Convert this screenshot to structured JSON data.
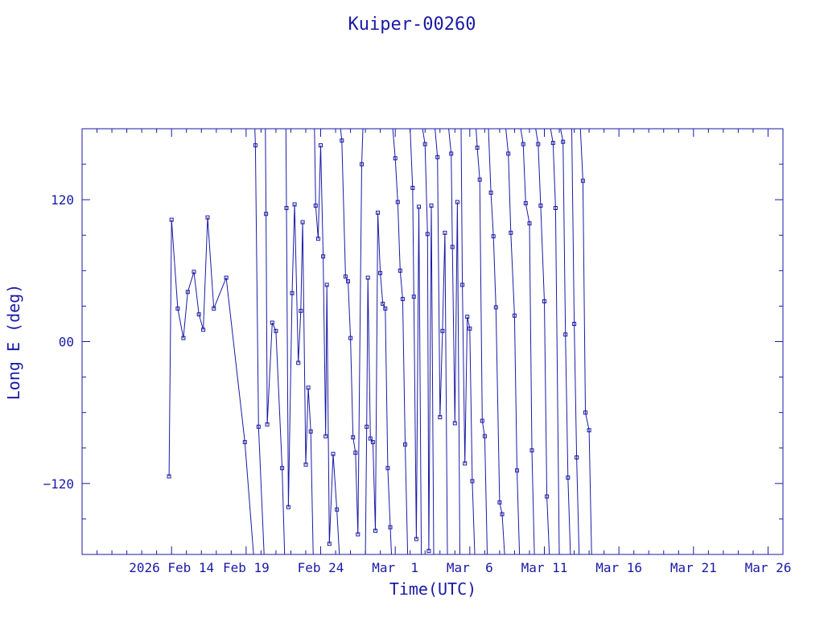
{
  "chart_data": {
    "type": "line",
    "title": "Kuiper-00260",
    "xlabel": "Time(UTC)",
    "ylabel": "Long E (deg)",
    "ylim": [
      -180,
      180
    ],
    "y_ticks": [
      -120,
      0,
      120
    ],
    "y_tick_labels": [
      "−120",
      "00",
      "120"
    ],
    "x_range": [
      "2026-02-08",
      "2026-03-27"
    ],
    "x_ticks": [
      "2026-02-14",
      "2026-02-19",
      "2026-02-24",
      "2026-03-01",
      "2026-03-06",
      "2026-03-11",
      "2026-03-16",
      "2026-03-21",
      "2026-03-26"
    ],
    "x_tick_labels": [
      "2026 Feb 14",
      "Feb 19",
      "Feb 24",
      "Mar  1",
      "Mar  6",
      "Mar 11",
      "Mar 16",
      "Mar 21",
      "Mar 26"
    ],
    "color": "#1a1aa6",
    "marker": "square",
    "grid": false,
    "series": [
      {
        "points": [
          [
            "2026-02-13T20:00",
            -114
          ],
          [
            "2026-02-14T00:00",
            103
          ],
          [
            "2026-02-14T10:00",
            28
          ],
          [
            "2026-02-14T19:00",
            3
          ],
          [
            "2026-02-15T02:00",
            42
          ],
          [
            "2026-02-15T12:00",
            59
          ],
          [
            "2026-02-15T20:00",
            23
          ],
          [
            "2026-02-16T03:00",
            10
          ],
          [
            "2026-02-16T10:00",
            105
          ],
          [
            "2026-02-16T20:00",
            28
          ],
          [
            "2026-02-17T16:00",
            54
          ],
          [
            "2026-02-18T22:00",
            -85
          ],
          [
            "2026-02-19T12:00",
            -180
          ],
          null,
          [
            "2026-02-19T14:00",
            180
          ],
          [
            "2026-02-19T15:00",
            166
          ],
          [
            "2026-02-19T20:00",
            -72
          ],
          [
            "2026-02-20T05:00",
            -180
          ],
          null,
          [
            "2026-02-20T07:00",
            180
          ],
          [
            "2026-02-20T08:00",
            108
          ],
          [
            "2026-02-20T10:00",
            -70
          ],
          [
            "2026-02-20T18:00",
            16
          ],
          [
            "2026-02-21T00:00",
            9
          ],
          [
            "2026-02-21T10:00",
            -107
          ],
          [
            "2026-02-21T14:00",
            -180
          ],
          null,
          [
            "2026-02-21T16:00",
            180
          ],
          [
            "2026-02-21T17:00",
            113
          ],
          [
            "2026-02-21T20:00",
            -140
          ],
          [
            "2026-02-22T02:00",
            41
          ],
          [
            "2026-02-22T06:00",
            116
          ],
          [
            "2026-02-22T12:00",
            -18
          ],
          [
            "2026-02-22T16:00",
            26
          ],
          [
            "2026-02-22T19:00",
            101
          ],
          [
            "2026-02-23T00:00",
            -104
          ],
          [
            "2026-02-23T04:00",
            -39
          ],
          [
            "2026-02-23T08:00",
            -76
          ],
          [
            "2026-02-23T12:00",
            -180
          ],
          null,
          [
            "2026-02-23T14:00",
            180
          ],
          [
            "2026-02-23T16:00",
            115
          ],
          [
            "2026-02-23T20:00",
            87
          ],
          [
            "2026-02-24T00:00",
            166
          ],
          [
            "2026-02-24T04:00",
            72
          ],
          [
            "2026-02-24T08:00",
            -80
          ],
          [
            "2026-02-24T10:00",
            48
          ],
          [
            "2026-02-24T14:00",
            -171
          ],
          [
            "2026-02-24T20:00",
            -95
          ],
          [
            "2026-02-25T02:00",
            -142
          ],
          [
            "2026-02-25T06:00",
            -180
          ],
          null,
          [
            "2026-02-25T08:00",
            180
          ],
          [
            "2026-02-25T10:00",
            170
          ],
          [
            "2026-02-25T16:00",
            55
          ],
          [
            "2026-02-25T20:00",
            51
          ],
          [
            "2026-02-26T00:00",
            3
          ],
          [
            "2026-02-26T04:00",
            -81
          ],
          [
            "2026-02-26T08:00",
            -94
          ],
          [
            "2026-02-26T12:00",
            -163
          ],
          [
            "2026-02-26T18:00",
            150
          ],
          [
            "2026-02-26T20:00",
            180
          ],
          null,
          [
            "2026-02-27T00:00",
            -180
          ],
          [
            "2026-02-27T02:00",
            -72
          ],
          [
            "2026-02-27T04:00",
            54
          ],
          [
            "2026-02-27T08:00",
            -82
          ],
          [
            "2026-02-27T12:00",
            -85
          ],
          [
            "2026-02-27T16:00",
            -160
          ],
          [
            "2026-02-27T20:00",
            109
          ],
          [
            "2026-02-28T00:00",
            58
          ],
          [
            "2026-02-28T04:00",
            32
          ],
          [
            "2026-02-28T08:00",
            28
          ],
          [
            "2026-02-28T12:00",
            -107
          ],
          [
            "2026-02-28T16:00",
            -157
          ],
          [
            "2026-02-28T18:00",
            -180
          ],
          null,
          [
            "2026-02-28T20:00",
            180
          ],
          [
            "2026-03-01T00:00",
            155
          ],
          [
            "2026-03-01T04:00",
            118
          ],
          [
            "2026-03-01T08:00",
            60
          ],
          [
            "2026-03-01T12:00",
            36
          ],
          [
            "2026-03-01T16:00",
            -87
          ],
          [
            "2026-03-01T20:00",
            -180
          ],
          null,
          [
            "2026-03-02T00:00",
            180
          ],
          [
            "2026-03-02T04:00",
            130
          ],
          [
            "2026-03-02T06:00",
            38
          ],
          [
            "2026-03-02T10:00",
            -167
          ],
          [
            "2026-03-02T14:00",
            114
          ],
          [
            "2026-03-02T18:00",
            -180
          ],
          null,
          [
            "2026-03-02T20:00",
            180
          ],
          [
            "2026-03-03T00:00",
            167
          ],
          [
            "2026-03-03T04:00",
            91
          ],
          [
            "2026-03-03T06:00",
            -177
          ],
          [
            "2026-03-03T10:00",
            115
          ],
          [
            "2026-03-03T14:00",
            -180
          ],
          null,
          [
            "2026-03-03T16:00",
            180
          ],
          [
            "2026-03-03T20:00",
            156
          ],
          [
            "2026-03-04T00:00",
            -64
          ],
          [
            "2026-03-04T04:00",
            9
          ],
          [
            "2026-03-04T08:00",
            92
          ],
          [
            "2026-03-04T12:00",
            -180
          ],
          null,
          [
            "2026-03-04T14:00",
            180
          ],
          [
            "2026-03-04T18:00",
            159
          ],
          [
            "2026-03-04T20:00",
            80
          ],
          [
            "2026-03-05T00:00",
            -69
          ],
          [
            "2026-03-05T04:00",
            118
          ],
          [
            "2026-03-05T08:00",
            -180
          ],
          null,
          [
            "2026-03-05T10:00",
            180
          ],
          [
            "2026-03-05T12:00",
            48
          ],
          [
            "2026-03-05T16:00",
            -103
          ],
          [
            "2026-03-05T20:00",
            21
          ],
          [
            "2026-03-06T00:00",
            11
          ],
          [
            "2026-03-06T04:00",
            -118
          ],
          [
            "2026-03-06T08:00",
            -180
          ],
          null,
          [
            "2026-03-06T10:00",
            180
          ],
          [
            "2026-03-06T12:00",
            164
          ],
          [
            "2026-03-06T16:00",
            137
          ],
          [
            "2026-03-06T20:00",
            -67
          ],
          [
            "2026-03-07T00:00",
            -80
          ],
          [
            "2026-03-07T04:00",
            -180
          ],
          null,
          [
            "2026-03-07T06:00",
            180
          ],
          [
            "2026-03-07T10:00",
            126
          ],
          [
            "2026-03-07T14:00",
            89
          ],
          [
            "2026-03-07T18:00",
            29
          ],
          [
            "2026-03-08T00:00",
            -136
          ],
          [
            "2026-03-08T04:00",
            -146
          ],
          [
            "2026-03-08T08:00",
            -180
          ],
          null,
          [
            "2026-03-08T10:00",
            180
          ],
          [
            "2026-03-08T14:00",
            159
          ],
          [
            "2026-03-08T18:00",
            92
          ],
          [
            "2026-03-09T00:00",
            22
          ],
          [
            "2026-03-09T04:00",
            -109
          ],
          [
            "2026-03-09T08:00",
            -180
          ],
          null,
          [
            "2026-03-09T10:00",
            180
          ],
          [
            "2026-03-09T14:00",
            167
          ],
          [
            "2026-03-09T18:00",
            117
          ],
          [
            "2026-03-10T00:00",
            100
          ],
          [
            "2026-03-10T04:00",
            -92
          ],
          [
            "2026-03-10T08:00",
            -180
          ],
          null,
          [
            "2026-03-10T10:00",
            180
          ],
          [
            "2026-03-10T14:00",
            167
          ],
          [
            "2026-03-10T18:00",
            115
          ],
          [
            "2026-03-11T00:00",
            34
          ],
          [
            "2026-03-11T04:00",
            -131
          ],
          [
            "2026-03-11T08:00",
            -180
          ],
          null,
          [
            "2026-03-11T10:00",
            180
          ],
          [
            "2026-03-11T14:00",
            168
          ],
          [
            "2026-03-11T18:00",
            113
          ],
          [
            "2026-03-12T00:00",
            -180
          ],
          null,
          [
            "2026-03-12T02:00",
            180
          ],
          [
            "2026-03-12T06:00",
            169
          ],
          [
            "2026-03-12T10:00",
            6
          ],
          [
            "2026-03-12T14:00",
            -115
          ],
          [
            "2026-03-12T18:00",
            -180
          ],
          null,
          [
            "2026-03-12T20:00",
            180
          ],
          [
            "2026-03-13T00:00",
            15
          ],
          [
            "2026-03-13T04:00",
            -98
          ],
          [
            "2026-03-13T08:00",
            -180
          ],
          null,
          [
            "2026-03-13T10:00",
            180
          ],
          [
            "2026-03-13T14:00",
            136
          ],
          [
            "2026-03-13T18:00",
            -60
          ],
          [
            "2026-03-14T00:00",
            -75
          ],
          [
            "2026-03-14T04:00",
            -180
          ]
        ]
      }
    ]
  }
}
